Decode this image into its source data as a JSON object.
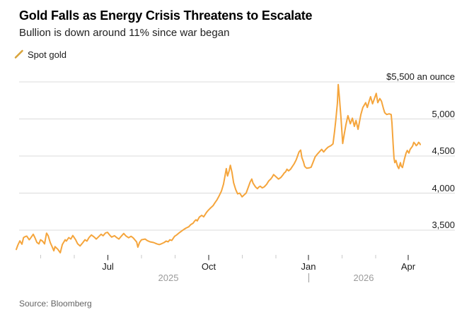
{
  "header": {
    "title": "Gold Falls as Energy Crisis Threatens to Escalate",
    "subtitle": "Bullion is down around 11% since war began"
  },
  "legend": {
    "label": "Spot gold"
  },
  "source": "Source: Bloomberg",
  "colors": {
    "line": "#F5A53C",
    "legend_icon": "#D9A43C",
    "grid": "#DBDBDB",
    "tick_minor": "#C9C9C9",
    "tick_major": "#222222",
    "axis_text": "#1A1A1A",
    "year_text": "#9B9B9B",
    "source_text": "#646464"
  },
  "chart_data": {
    "type": "line",
    "title": "Gold Falls as Energy Crisis Threatens to Escalate",
    "subtitle": "Bullion is down around 11% since war began",
    "unit": "$ an ounce",
    "grid": "horizontal",
    "legend_position": "top-left",
    "y_axis": {
      "min": 3100,
      "max": 5500,
      "ticks": [
        {
          "v": 5500,
          "label": "$5,500 an ounce"
        },
        {
          "v": 5000,
          "label": "5,000"
        },
        {
          "v": 4500,
          "label": "4,500"
        },
        {
          "v": 4000,
          "label": "4,000"
        },
        {
          "v": 3500,
          "label": "3,500"
        }
      ]
    },
    "x_axis": {
      "range": "Apr 2025 - Apr 2026",
      "ticks": [
        {
          "t": 0.0604,
          "label": "",
          "major": false
        },
        {
          "t": 0.1436,
          "label": "",
          "major": false
        },
        {
          "t": 0.2268,
          "label": "Jul",
          "major": true
        },
        {
          "t": 0.31,
          "label": "",
          "major": false
        },
        {
          "t": 0.3932,
          "label": "",
          "major": false
        },
        {
          "t": 0.4764,
          "label": "Oct",
          "major": true
        },
        {
          "t": 0.5595,
          "label": "",
          "major": false
        },
        {
          "t": 0.6427,
          "label": "",
          "major": false
        },
        {
          "t": 0.7233,
          "label": "Jan",
          "major": true
        },
        {
          "t": 0.8065,
          "label": "",
          "major": false
        },
        {
          "t": 0.8897,
          "label": "",
          "major": false
        },
        {
          "t": 0.9702,
          "label": "Apr",
          "major": true
        }
      ],
      "years": [
        {
          "t": 0.3765,
          "label": "2025"
        },
        {
          "t": 0.8599,
          "label": "2026"
        }
      ],
      "year_divider_t": 0.7233
    },
    "series": [
      {
        "name": "Spot gold",
        "points": [
          [
            0.0,
            3240
          ],
          [
            0.004,
            3300
          ],
          [
            0.009,
            3355
          ],
          [
            0.014,
            3310
          ],
          [
            0.018,
            3400
          ],
          [
            0.023,
            3415
          ],
          [
            0.026,
            3420
          ],
          [
            0.032,
            3370
          ],
          [
            0.035,
            3390
          ],
          [
            0.042,
            3445
          ],
          [
            0.046,
            3400
          ],
          [
            0.051,
            3335
          ],
          [
            0.056,
            3315
          ],
          [
            0.06,
            3370
          ],
          [
            0.065,
            3352
          ],
          [
            0.07,
            3315
          ],
          [
            0.075,
            3460
          ],
          [
            0.079,
            3425
          ],
          [
            0.084,
            3333
          ],
          [
            0.088,
            3287
          ],
          [
            0.093,
            3222
          ],
          [
            0.096,
            3278
          ],
          [
            0.103,
            3241
          ],
          [
            0.109,
            3195
          ],
          [
            0.114,
            3306
          ],
          [
            0.121,
            3370
          ],
          [
            0.124,
            3352
          ],
          [
            0.13,
            3400
          ],
          [
            0.135,
            3380
          ],
          [
            0.14,
            3428
          ],
          [
            0.147,
            3370
          ],
          [
            0.152,
            3315
          ],
          [
            0.158,
            3287
          ],
          [
            0.165,
            3333
          ],
          [
            0.17,
            3370
          ],
          [
            0.175,
            3352
          ],
          [
            0.18,
            3400
          ],
          [
            0.186,
            3435
          ],
          [
            0.193,
            3407
          ],
          [
            0.198,
            3380
          ],
          [
            0.203,
            3407
          ],
          [
            0.21,
            3445
          ],
          [
            0.215,
            3425
          ],
          [
            0.221,
            3463
          ],
          [
            0.226,
            3470
          ],
          [
            0.231,
            3435
          ],
          [
            0.236,
            3407
          ],
          [
            0.243,
            3425
          ],
          [
            0.249,
            3398
          ],
          [
            0.254,
            3380
          ],
          [
            0.261,
            3425
          ],
          [
            0.266,
            3455
          ],
          [
            0.271,
            3425
          ],
          [
            0.278,
            3398
          ],
          [
            0.284,
            3417
          ],
          [
            0.289,
            3398
          ],
          [
            0.292,
            3380
          ],
          [
            0.298,
            3340
          ],
          [
            0.301,
            3270
          ],
          [
            0.305,
            3333
          ],
          [
            0.31,
            3370
          ],
          [
            0.319,
            3380
          ],
          [
            0.324,
            3360
          ],
          [
            0.331,
            3343
          ],
          [
            0.34,
            3333
          ],
          [
            0.348,
            3315
          ],
          [
            0.354,
            3306
          ],
          [
            0.359,
            3315
          ],
          [
            0.366,
            3333
          ],
          [
            0.371,
            3352
          ],
          [
            0.376,
            3343
          ],
          [
            0.38,
            3370
          ],
          [
            0.385,
            3361
          ],
          [
            0.392,
            3417
          ],
          [
            0.397,
            3435
          ],
          [
            0.403,
            3463
          ],
          [
            0.41,
            3491
          ],
          [
            0.415,
            3510
          ],
          [
            0.42,
            3528
          ],
          [
            0.427,
            3546
          ],
          [
            0.432,
            3575
          ],
          [
            0.438,
            3595
          ],
          [
            0.441,
            3620
          ],
          [
            0.445,
            3640
          ],
          [
            0.448,
            3625
          ],
          [
            0.453,
            3675
          ],
          [
            0.459,
            3700
          ],
          [
            0.464,
            3680
          ],
          [
            0.471,
            3740
          ],
          [
            0.476,
            3772
          ],
          [
            0.481,
            3800
          ],
          [
            0.487,
            3830
          ],
          [
            0.492,
            3870
          ],
          [
            0.497,
            3910
          ],
          [
            0.502,
            3960
          ],
          [
            0.508,
            4030
          ],
          [
            0.513,
            4120
          ],
          [
            0.517,
            4240
          ],
          [
            0.52,
            4330
          ],
          [
            0.523,
            4230
          ],
          [
            0.527,
            4300
          ],
          [
            0.53,
            4375
          ],
          [
            0.534,
            4280
          ],
          [
            0.538,
            4140
          ],
          [
            0.543,
            4050
          ],
          [
            0.548,
            3990
          ],
          [
            0.553,
            4000
          ],
          [
            0.559,
            3950
          ],
          [
            0.564,
            3975
          ],
          [
            0.569,
            4000
          ],
          [
            0.574,
            4075
          ],
          [
            0.579,
            4150
          ],
          [
            0.583,
            4190
          ],
          [
            0.586,
            4135
          ],
          [
            0.592,
            4085
          ],
          [
            0.597,
            4060
          ],
          [
            0.6,
            4080
          ],
          [
            0.604,
            4092
          ],
          [
            0.609,
            4070
          ],
          [
            0.614,
            4085
          ],
          [
            0.62,
            4120
          ],
          [
            0.625,
            4165
          ],
          [
            0.63,
            4190
          ],
          [
            0.634,
            4220
          ],
          [
            0.637,
            4250
          ],
          [
            0.642,
            4225
          ],
          [
            0.646,
            4205
          ],
          [
            0.649,
            4190
          ],
          [
            0.655,
            4210
          ],
          [
            0.66,
            4245
          ],
          [
            0.663,
            4270
          ],
          [
            0.667,
            4290
          ],
          [
            0.67,
            4322
          ],
          [
            0.674,
            4300
          ],
          [
            0.679,
            4322
          ],
          [
            0.683,
            4355
          ],
          [
            0.688,
            4395
          ],
          [
            0.693,
            4450
          ],
          [
            0.697,
            4510
          ],
          [
            0.7,
            4555
          ],
          [
            0.704,
            4580
          ],
          [
            0.707,
            4480
          ],
          [
            0.711,
            4420
          ],
          [
            0.714,
            4360
          ],
          [
            0.719,
            4335
          ],
          [
            0.725,
            4340
          ],
          [
            0.73,
            4350
          ],
          [
            0.735,
            4420
          ],
          [
            0.74,
            4490
          ],
          [
            0.746,
            4530
          ],
          [
            0.751,
            4560
          ],
          [
            0.756,
            4590
          ],
          [
            0.761,
            4555
          ],
          [
            0.767,
            4595
          ],
          [
            0.772,
            4620
          ],
          [
            0.779,
            4640
          ],
          [
            0.784,
            4665
          ],
          [
            0.788,
            4830
          ],
          [
            0.791,
            4990
          ],
          [
            0.795,
            5210
          ],
          [
            0.797,
            5465
          ],
          [
            0.8,
            5285
          ],
          [
            0.804,
            5000
          ],
          [
            0.808,
            4670
          ],
          [
            0.812,
            4800
          ],
          [
            0.816,
            4920
          ],
          [
            0.821,
            5045
          ],
          [
            0.827,
            4935
          ],
          [
            0.832,
            5010
          ],
          [
            0.837,
            4900
          ],
          [
            0.841,
            4980
          ],
          [
            0.846,
            4860
          ],
          [
            0.853,
            5060
          ],
          [
            0.858,
            5155
          ],
          [
            0.865,
            5220
          ],
          [
            0.869,
            5155
          ],
          [
            0.874,
            5250
          ],
          [
            0.877,
            5300
          ],
          [
            0.882,
            5205
          ],
          [
            0.886,
            5265
          ],
          [
            0.891,
            5345
          ],
          [
            0.895,
            5220
          ],
          [
            0.9,
            5275
          ],
          [
            0.904,
            5240
          ],
          [
            0.909,
            5140
          ],
          [
            0.912,
            5085
          ],
          [
            0.917,
            5060
          ],
          [
            0.923,
            5070
          ],
          [
            0.928,
            5060
          ],
          [
            0.93,
            4950
          ],
          [
            0.933,
            4660
          ],
          [
            0.935,
            4475
          ],
          [
            0.937,
            4410
          ],
          [
            0.94,
            4440
          ],
          [
            0.944,
            4360
          ],
          [
            0.947,
            4330
          ],
          [
            0.951,
            4410
          ],
          [
            0.953,
            4365
          ],
          [
            0.956,
            4345
          ],
          [
            0.961,
            4460
          ],
          [
            0.965,
            4540
          ],
          [
            0.968,
            4575
          ],
          [
            0.972,
            4540
          ],
          [
            0.975,
            4590
          ],
          [
            0.981,
            4635
          ],
          [
            0.984,
            4685
          ],
          [
            0.988,
            4660
          ],
          [
            0.99,
            4640
          ],
          [
            0.993,
            4655
          ],
          [
            0.996,
            4685
          ],
          [
            0.999,
            4670
          ],
          [
            1.0,
            4655
          ]
        ]
      }
    ]
  }
}
